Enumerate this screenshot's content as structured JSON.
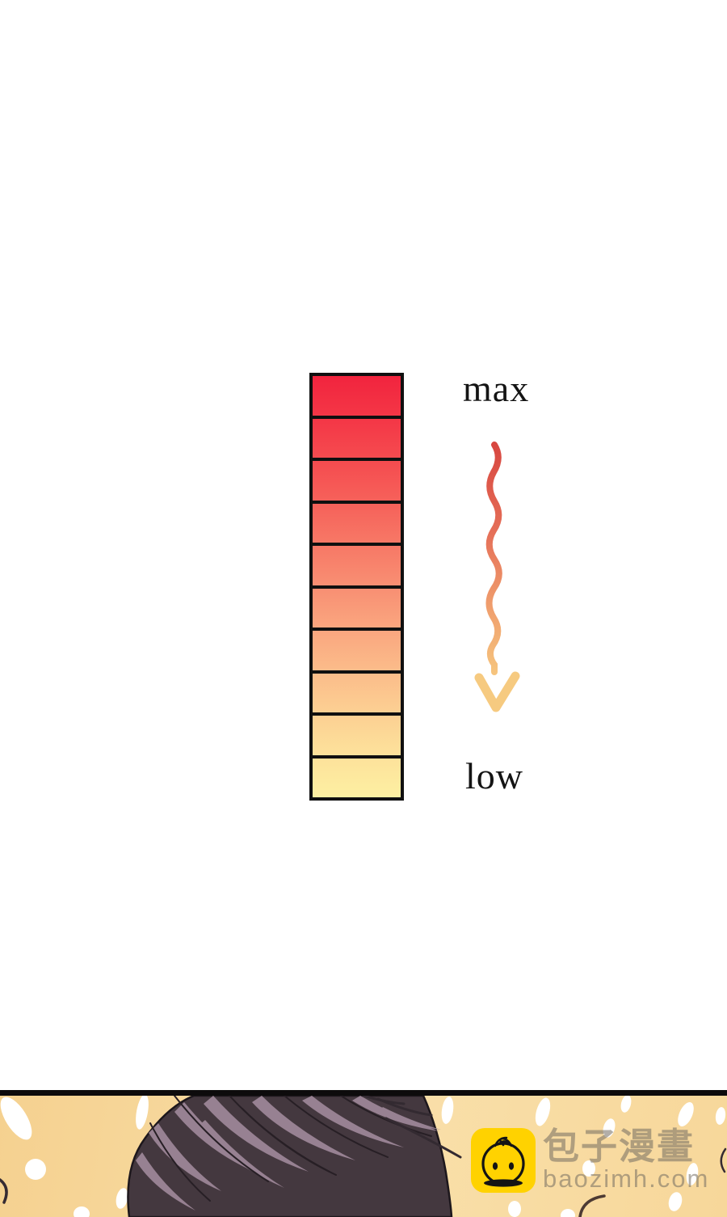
{
  "scale": {
    "label_max": "max",
    "label_low": "low",
    "levels": 10,
    "border_color": "#101010",
    "segment_colors": [
      {
        "top": "#f1243e",
        "bottom": "#f43646"
      },
      {
        "top": "#f43646",
        "bottom": "#f54b4f"
      },
      {
        "top": "#f54b4f",
        "bottom": "#f6615a"
      },
      {
        "top": "#f6615a",
        "bottom": "#f77866"
      },
      {
        "top": "#f77866",
        "bottom": "#f88f73"
      },
      {
        "top": "#f88f73",
        "bottom": "#faa67f"
      },
      {
        "top": "#faa67f",
        "bottom": "#fbbc8a"
      },
      {
        "top": "#fbbc8a",
        "bottom": "#fcd093"
      },
      {
        "top": "#fcd093",
        "bottom": "#fde29b"
      },
      {
        "top": "#fde29b",
        "bottom": "#fdf0a2"
      }
    ]
  },
  "arrow": {
    "direction": "down",
    "gradient": [
      "#d84740",
      "#e56f58",
      "#f0a06e",
      "#f6c57e"
    ],
    "head_color": "#f6ca80"
  },
  "panel": {
    "border_color": "#0d0b0c",
    "background_left": "#f5d190",
    "background_mid": "#f9dfa9",
    "background_right": "#f7d79a",
    "hair_base_color": "#44383f",
    "hair_highlight_color": "#a18a9b",
    "spot_color": "#ffffff"
  },
  "watermark": {
    "site_name": "包子漫畫",
    "site_url": "baozimh.com",
    "icon": "baozi-bun-icon",
    "icon_bg": "#ffd200",
    "text_color": "rgba(115,108,96,0.55)"
  }
}
